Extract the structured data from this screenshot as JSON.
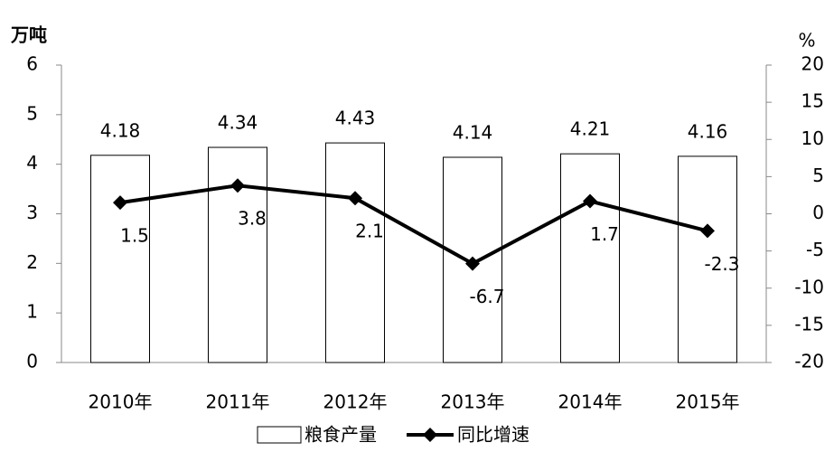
{
  "chart_data": {
    "type": "bar",
    "ylabel": "万吨",
    "y2label": "%",
    "categories": [
      "2010年",
      "2011年",
      "2012年",
      "2013年",
      "2014年",
      "2015年"
    ],
    "series": [
      {
        "name": "粮食产量",
        "color": "#ffffff",
        "values": [
          4.18,
          4.34,
          4.43,
          4.14,
          4.21,
          4.16
        ]
      },
      {
        "name": "同比增速",
        "type": "line",
        "axis": "y2",
        "color": "#000000",
        "values": [
          1.5,
          3.8,
          2.1,
          -6.7,
          1.7,
          -2.3
        ]
      }
    ],
    "ylim": [
      0,
      6
    ],
    "yticks": [
      0,
      1,
      2,
      3,
      4,
      5,
      6
    ],
    "y2lim": [
      -20,
      20
    ],
    "y2ticks": [
      -20,
      -15,
      -10,
      -5,
      0,
      5,
      10,
      15,
      20
    ],
    "grid": false
  }
}
